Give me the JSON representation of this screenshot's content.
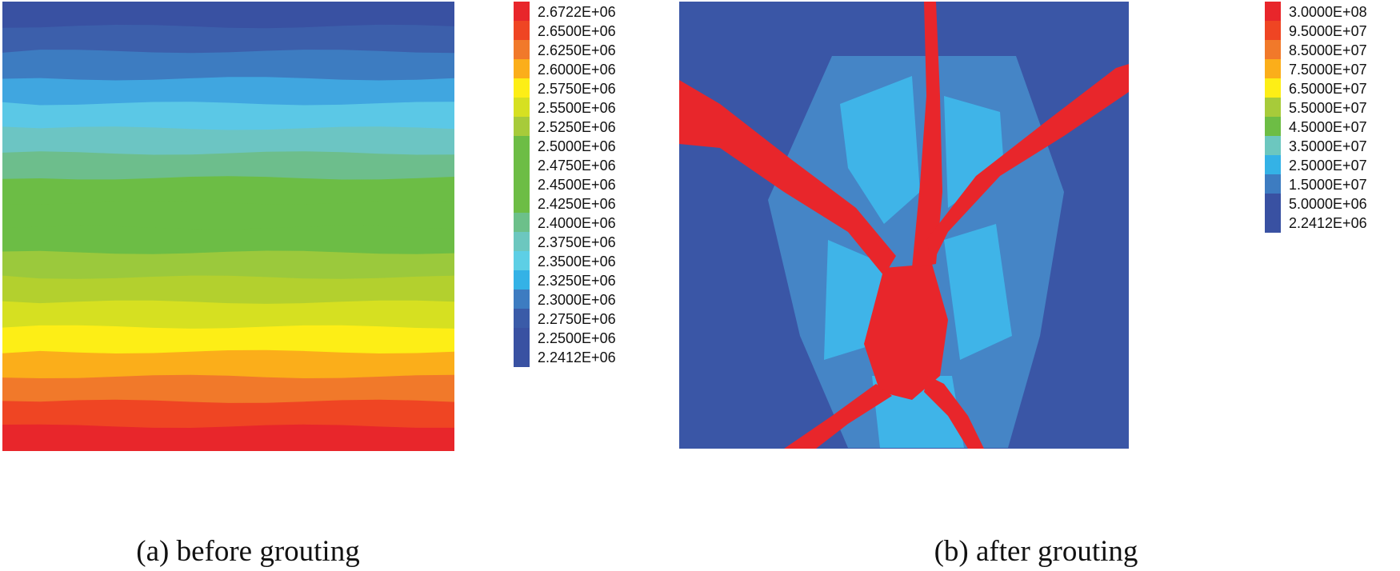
{
  "figure": {
    "panels": [
      {
        "caption": "(a) before grouting"
      },
      {
        "caption": "(b) after grouting"
      }
    ]
  },
  "chart_data": [
    {
      "type": "heatmap",
      "title": "",
      "caption": "(a) before grouting",
      "pattern": "horizontal bands increasing downward",
      "legend_position": "right",
      "legend": {
        "labels": [
          "2.6722E+06",
          "2.6500E+06",
          "2.6250E+06",
          "2.6000E+06",
          "2.5750E+06",
          "2.5500E+06",
          "2.5250E+06",
          "2.5000E+06",
          "2.4750E+06",
          "2.4500E+06",
          "2.4250E+06",
          "2.4000E+06",
          "2.3750E+06",
          "2.3500E+06",
          "2.3250E+06",
          "2.3000E+06",
          "2.2750E+06",
          "2.2500E+06",
          "2.2412E+06"
        ],
        "colors": [
          "#e8262b",
          "#ef4523",
          "#f1792a",
          "#fbae1a",
          "#fdee16",
          "#d6e021",
          "#a7cb3a",
          "#6dbd45",
          "#6dbd45",
          "#6dbd45",
          "#6dbd45",
          "#6cc08a",
          "#6cc7bf",
          "#5dcfe5",
          "#34b2e6",
          "#3d7cc1",
          "#3a5ba8",
          "#3951a2",
          "#3951a2"
        ]
      },
      "bands_top_to_bottom": [
        {
          "value": 2241200.0,
          "color": "#3951a2"
        },
        {
          "value": 2250000.0,
          "color": "#3c5fab"
        },
        {
          "value": 2300000.0,
          "color": "#3d7cc1"
        },
        {
          "value": 2325000.0,
          "color": "#40a6e0"
        },
        {
          "value": 2350000.0,
          "color": "#5bc8e6"
        },
        {
          "value": 2375000.0,
          "color": "#6cc5c3"
        },
        {
          "value": 2400000.0,
          "color": "#6dbe8c"
        },
        {
          "value": 2425000.0,
          "color": "#6cbd45"
        },
        {
          "value": 2450000.0,
          "color": "#6cbd45"
        },
        {
          "value": 2475000.0,
          "color": "#6cbd45"
        },
        {
          "value": 2500000.0,
          "color": "#9bc93c"
        },
        {
          "value": 2525000.0,
          "color": "#b3d02e"
        },
        {
          "value": 2550000.0,
          "color": "#d6e021"
        },
        {
          "value": 2575000.0,
          "color": "#fdee16"
        },
        {
          "value": 2600000.0,
          "color": "#fbae1a"
        },
        {
          "value": 2625000.0,
          "color": "#f1792a"
        },
        {
          "value": 2650000.0,
          "color": "#ef4523"
        },
        {
          "value": 2672200.0,
          "color": "#e8262b"
        }
      ],
      "band_weights": [
        1,
        1,
        1.1,
        1,
        1,
        1,
        1,
        1,
        1,
        1,
        1,
        1,
        1,
        1,
        1,
        1,
        1,
        1
      ]
    },
    {
      "type": "heatmap",
      "title": "",
      "caption": "(b) after grouting",
      "pattern": "X-shaped high-value grout channels from center to corners, surrounded by medium-value zone",
      "legend_position": "right",
      "legend": {
        "labels": [
          "3.0000E+08",
          "9.5000E+07",
          "8.5000E+07",
          "7.5000E+07",
          "6.5000E+07",
          "5.5000E+07",
          "4.5000E+07",
          "3.5000E+07",
          "2.5000E+07",
          "1.5000E+07",
          "5.0000E+06",
          "2.2412E+06"
        ],
        "colors": [
          "#e8262b",
          "#ef4523",
          "#f1792a",
          "#fbae1a",
          "#fdee16",
          "#a7cb3a",
          "#6dbd45",
          "#6cc7bf",
          "#34b2e6",
          "#3d7cc1",
          "#3951a2",
          "#3951a2"
        ]
      },
      "background_color": "#3a56a6",
      "mid_color": "#4585c6",
      "light_color": "#3fb4e8",
      "channel_color": "#e8262b"
    }
  ]
}
